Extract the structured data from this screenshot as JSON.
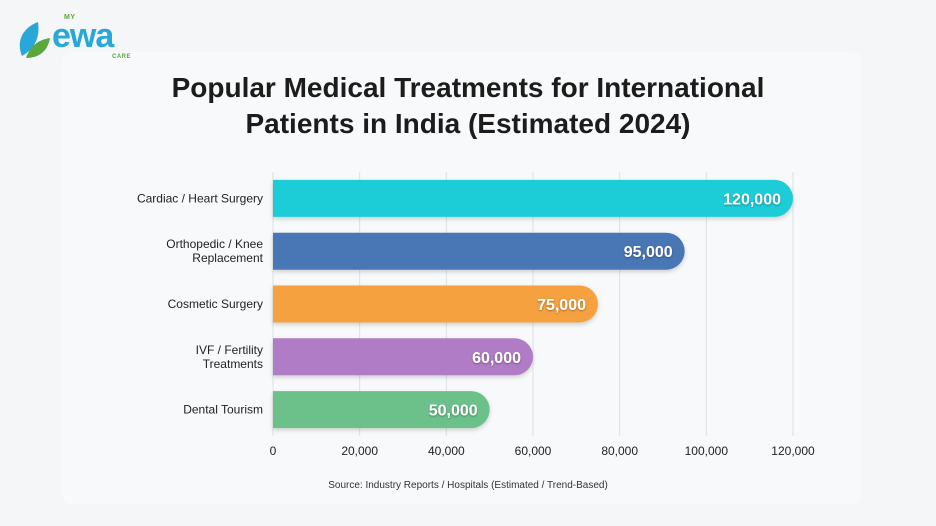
{
  "logo": {
    "prefix": "MY",
    "name": "ewa",
    "suffix": "CARE"
  },
  "title_line1": "Popular Medical Treatments for International",
  "title_line2": "Patients in India (Estimated 2024)",
  "source": "Source: Industry Reports / Hospitals (Estimated / Trend-Based)",
  "chart_data": {
    "type": "bar",
    "orientation": "horizontal",
    "title": "Popular Medical Treatments for International Patients in India (Estimated 2024)",
    "categories": [
      [
        "Cardiac / Heart Surgery"
      ],
      [
        "Orthopedic / Knee",
        "Replacement"
      ],
      [
        "Cosmetic Surgery"
      ],
      [
        "IVF / Fertility",
        "Treatments"
      ],
      [
        "Dental Tourism"
      ]
    ],
    "values": [
      120000,
      95000,
      75000,
      60000,
      50000
    ],
    "value_labels": [
      "120,000",
      "95,000",
      "75,000",
      "60,000",
      "50,000"
    ],
    "colors": [
      "#1fcdd8",
      "#4a76b4",
      "#f5a13f",
      "#b07bc6",
      "#6cc18a"
    ],
    "xlim": [
      0,
      120000
    ],
    "xticks": [
      0,
      20000,
      40000,
      60000,
      80000,
      100000,
      120000
    ],
    "xtick_labels": [
      "0",
      "20,000",
      "40,000",
      "60,000",
      "80,000",
      "100,000",
      "120,000"
    ],
    "grid": true,
    "xlabel": "",
    "ylabel": ""
  }
}
